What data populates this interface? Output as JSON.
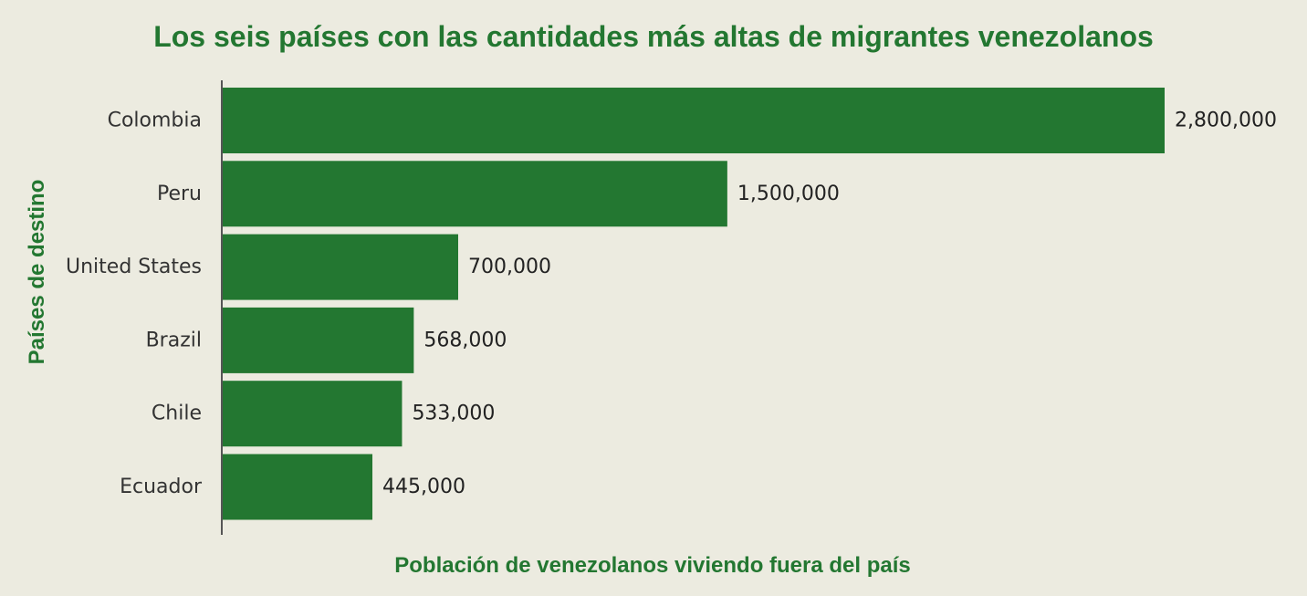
{
  "chart_data": {
    "type": "bar",
    "orientation": "horizontal",
    "title": "Los seis países con las cantidades más altas de migrantes venezolanos",
    "xlabel": "Población de venezolanos viviendo fuera del país",
    "ylabel": "Países de destino",
    "categories": [
      "Colombia",
      "Peru",
      "United States",
      "Brazil",
      "Chile",
      "Ecuador"
    ],
    "values": [
      2800000,
      1500000,
      700000,
      568000,
      533000,
      445000
    ],
    "data_labels": [
      "2,800,000",
      "1,500,000",
      "700,000",
      "568,000",
      "533,000",
      "445,000"
    ],
    "xlim": [
      0,
      2800000
    ],
    "grid": false,
    "legend": "none",
    "colors": {
      "bar": "#237731",
      "title": "#237731",
      "axis_label": "#237731",
      "text": "#222222",
      "axis_line": "#555555",
      "background": "#ecebe0"
    }
  }
}
